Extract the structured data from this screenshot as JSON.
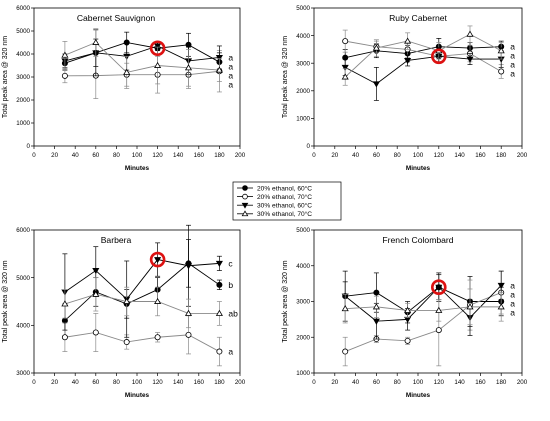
{
  "legend": {
    "placement": "center",
    "entries": [
      {
        "label": "20% ethanol, 60°C",
        "marker": "circle-filled"
      },
      {
        "label": "20% ethanol, 70°C",
        "marker": "circle-open"
      },
      {
        "label": "30% ethanol, 60°C",
        "marker": "triangle-down-filled"
      },
      {
        "label": "30% ethanol, 70°C",
        "marker": "triangle-up-open"
      }
    ]
  },
  "colors": {
    "series": "#000000",
    "open_series": "#8a8a8a",
    "highlight": "#dd1111"
  },
  "chart_data": [
    {
      "type": "line",
      "title": "Cabernet Sauvignon",
      "xlabel": "Minutes",
      "ylabel": "Total peak area @ 320 nm",
      "xlim": [
        0,
        200
      ],
      "ylim": [
        0,
        6000
      ],
      "xticks": [
        0,
        20,
        40,
        60,
        80,
        100,
        120,
        140,
        160,
        180,
        200
      ],
      "yticks": [
        0,
        1000,
        2000,
        3000,
        4000,
        5000,
        6000
      ],
      "x": [
        30,
        60,
        90,
        120,
        150,
        180
      ],
      "grid": false,
      "series": [
        {
          "name": "20% ethanol, 60°C",
          "values": [
            3600,
            4050,
            4500,
            4250,
            4400,
            3650
          ],
          "errors": [
            300,
            600,
            450,
            250,
            500,
            400
          ]
        },
        {
          "name": "20% ethanol, 70°C",
          "values": [
            3050,
            3060,
            3100,
            3100,
            3100,
            3250
          ],
          "errors": [
            300,
            1000,
            500,
            800,
            600,
            900
          ]
        },
        {
          "name": "30% ethanol, 60°C",
          "values": [
            3700,
            4050,
            3900,
            4350,
            3700,
            3850
          ],
          "errors": [
            300,
            1000,
            600,
            200,
            600,
            500
          ]
        },
        {
          "name": "30% ethanol, 70°C",
          "values": [
            3950,
            4500,
            3200,
            3500,
            3400,
            3300
          ],
          "errors": [
            600,
            600,
            700,
            800,
            800,
            500
          ]
        }
      ],
      "letters": [
        "a",
        "a",
        "a",
        "a"
      ],
      "highlight": {
        "x": 120,
        "y": 4250
      }
    },
    {
      "type": "line",
      "title": "Ruby Cabernet",
      "xlabel": "Minutes",
      "ylabel": "Total peak area @ 320 nm",
      "xlim": [
        0,
        200
      ],
      "ylim": [
        0,
        5000
      ],
      "xticks": [
        0,
        20,
        40,
        60,
        80,
        100,
        120,
        140,
        160,
        180,
        200
      ],
      "yticks": [
        0,
        1000,
        2000,
        3000,
        4000,
        5000
      ],
      "x": [
        30,
        60,
        90,
        120,
        150,
        180
      ],
      "grid": false,
      "series": [
        {
          "name": "20% ethanol, 60°C",
          "values": [
            3200,
            3450,
            3350,
            3600,
            3550,
            3600
          ],
          "errors": [
            300,
            250,
            300,
            300,
            200,
            200
          ]
        },
        {
          "name": "20% ethanol, 70°C",
          "values": [
            3800,
            3600,
            3500,
            3250,
            3350,
            2700
          ],
          "errors": [
            400,
            200,
            300,
            250,
            300,
            250
          ]
        },
        {
          "name": "30% ethanol, 60°C",
          "values": [
            2850,
            2250,
            3100,
            3250,
            3150,
            3150
          ],
          "errors": [
            300,
            600,
            200,
            200,
            200,
            300
          ]
        },
        {
          "name": "30% ethanol, 70°C",
          "values": [
            2500,
            3550,
            3800,
            3450,
            4050,
            3450
          ],
          "errors": [
            300,
            300,
            300,
            300,
            300,
            300
          ]
        }
      ],
      "letters": [
        "a",
        "a",
        "a",
        "a"
      ],
      "highlight": {
        "x": 120,
        "y": 3250
      }
    },
    {
      "type": "line",
      "title": "Barbera",
      "xlabel": "Minutes",
      "ylabel": "Total peak area @ 320 nm",
      "xlim": [
        0,
        200
      ],
      "ylim": [
        3000,
        6000
      ],
      "xticks": [
        0,
        20,
        40,
        60,
        80,
        100,
        120,
        140,
        160,
        180,
        200
      ],
      "yticks": [
        3000,
        4000,
        5000,
        6000
      ],
      "x": [
        30,
        60,
        90,
        120,
        150,
        180
      ],
      "grid": false,
      "series": [
        {
          "name": "20% ethanol, 60°C",
          "values": [
            4100,
            4700,
            4450,
            4750,
            5300,
            4850
          ],
          "errors": [
            350,
            300,
            300,
            250,
            500,
            100
          ]
        },
        {
          "name": "20% ethanol, 70°C",
          "values": [
            3750,
            3850,
            3650,
            3750,
            3800,
            3450
          ],
          "errors": [
            300,
            400,
            150,
            100,
            400,
            300
          ]
        },
        {
          "name": "30% ethanol, 60°C",
          "values": [
            4700,
            5150,
            4550,
            5380,
            5250,
            5300
          ],
          "errors": [
            800,
            500,
            800,
            350,
            850,
            150
          ]
        },
        {
          "name": "30% ethanol, 70°C",
          "values": [
            4450,
            4650,
            4500,
            4500,
            4250,
            4250
          ],
          "errors": [
            300,
            350,
            300,
            300,
            300,
            250
          ]
        }
      ],
      "letters": [
        "c",
        "b",
        "ab",
        "a"
      ],
      "highlight": {
        "x": 120,
        "y": 5380
      }
    },
    {
      "type": "line",
      "title": "French Colombard",
      "xlabel": "Minutes",
      "ylabel": "Total peak area @ 320 nm",
      "xlim": [
        0,
        200
      ],
      "ylim": [
        1000,
        5000
      ],
      "xticks": [
        0,
        20,
        40,
        60,
        80,
        100,
        120,
        140,
        160,
        180,
        200
      ],
      "yticks": [
        1000,
        2000,
        3000,
        4000,
        5000
      ],
      "x": [
        30,
        60,
        90,
        120,
        150,
        180
      ],
      "grid": false,
      "series": [
        {
          "name": "20% ethanol, 60°C",
          "values": [
            3150,
            3250,
            2700,
            3400,
            3000,
            3000
          ],
          "errors": [
            400,
            550,
            300,
            400,
            700,
            400
          ]
        },
        {
          "name": "20% ethanol, 70°C",
          "values": [
            1600,
            1950,
            1900,
            2200,
            2900,
            3250
          ],
          "errors": [
            400,
            100,
            100,
            1000,
            700,
            600
          ]
        },
        {
          "name": "30% ethanol, 60°C",
          "values": [
            3150,
            2450,
            2500,
            3400,
            2550,
            3450
          ],
          "errors": [
            700,
            500,
            300,
            350,
            500,
            400
          ]
        },
        {
          "name": "30% ethanol, 70°C",
          "values": [
            2800,
            2850,
            2750,
            2750,
            2850,
            2850
          ],
          "errors": [
            400,
            300,
            200,
            300,
            500,
            400
          ]
        }
      ],
      "letters": [
        "a",
        "a",
        "a",
        "a"
      ],
      "highlight": {
        "x": 120,
        "y": 3400
      }
    }
  ]
}
